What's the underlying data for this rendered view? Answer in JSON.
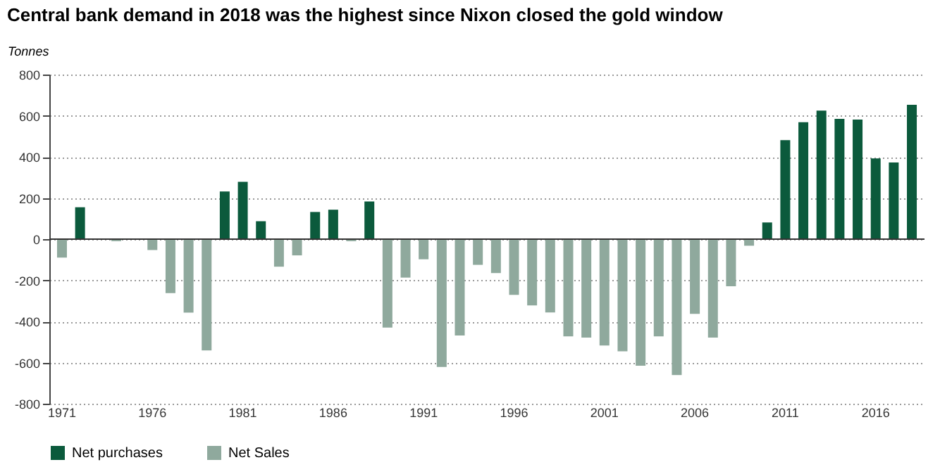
{
  "chart_data": {
    "type": "bar",
    "title": "Central bank demand in 2018 was the highest since Nixon closed the gold window",
    "ylabel": "Tonnes",
    "categories": [
      "1971",
      null,
      null,
      null,
      null,
      "1976",
      null,
      null,
      null,
      null,
      "1981",
      null,
      null,
      null,
      null,
      "1986",
      null,
      null,
      null,
      null,
      "1991",
      null,
      null,
      null,
      null,
      "1996",
      null,
      null,
      null,
      null,
      "2001",
      null,
      null,
      null,
      null,
      "2006",
      null,
      null,
      null,
      null,
      "2011",
      null,
      null,
      null,
      null,
      "2016",
      null,
      null
    ],
    "series": [
      {
        "name": "Net purchases",
        "color": "#0b5a3c",
        "values": [
          null,
          155,
          null,
          null,
          null,
          null,
          null,
          null,
          null,
          232,
          279,
          87,
          null,
          null,
          132,
          143,
          null,
          183,
          null,
          null,
          null,
          null,
          null,
          null,
          null,
          null,
          null,
          null,
          null,
          null,
          null,
          null,
          null,
          null,
          null,
          null,
          null,
          null,
          null,
          81,
          481,
          568,
          625,
          585,
          581,
          392,
          373,
          653
        ]
      },
      {
        "name": "Net Sales",
        "color": "#8fa99d",
        "values": [
          -90,
          null,
          null,
          -10,
          null,
          -53,
          -262,
          -357,
          -541,
          null,
          null,
          null,
          -134,
          -79,
          null,
          null,
          -10,
          null,
          -430,
          -187,
          -98,
          -621,
          -468,
          -125,
          -165,
          -271,
          -322,
          -356,
          -473,
          -479,
          -517,
          -545,
          -615,
          -473,
          -661,
          -363,
          -479,
          -229,
          -32,
          null,
          null,
          null,
          null,
          null,
          null,
          null,
          null,
          null
        ]
      }
    ],
    "ylim": [
      -800,
      800
    ],
    "yticks": [
      -800,
      -600,
      -400,
      -200,
      0,
      200,
      400,
      600,
      800
    ],
    "grid": "y",
    "legend": "bottom left"
  }
}
